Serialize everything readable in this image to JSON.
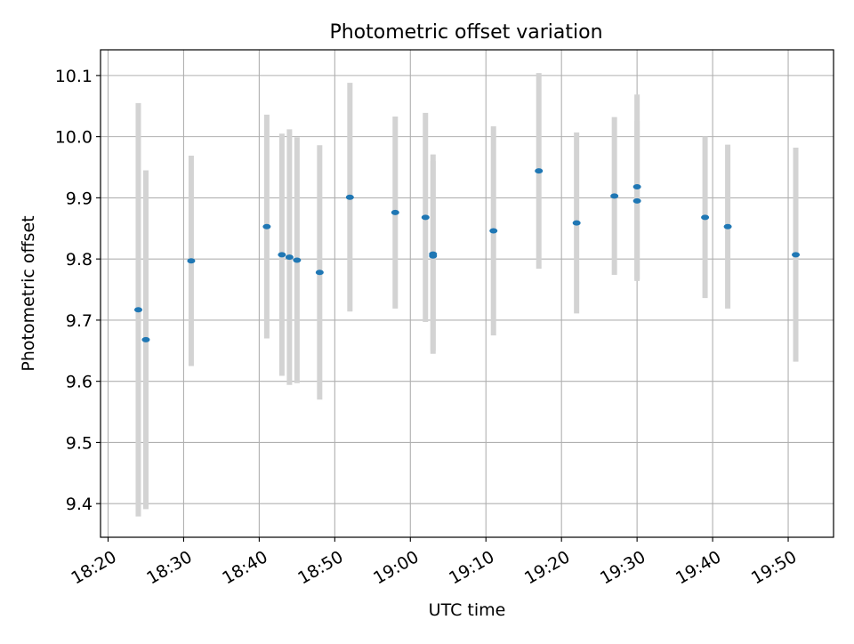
{
  "chart_data": {
    "type": "scatter",
    "title": "Photometric offset variation",
    "xlabel": "UTC time",
    "ylabel": "Photometric offset",
    "x_ticks": [
      "18:20",
      "18:30",
      "18:40",
      "18:50",
      "19:00",
      "19:10",
      "19:20",
      "19:30",
      "19:40",
      "19:50"
    ],
    "y_ticks": [
      "9.4",
      "9.5",
      "9.6",
      "9.7",
      "9.8",
      "9.9",
      "10.0",
      "10.1"
    ],
    "xlim": [
      "18:20",
      "19:56"
    ],
    "ylim": [
      9.345,
      10.142
    ],
    "grid": true,
    "colors": {
      "marker": "#1f77b4",
      "errorbar": "#d3d3d3",
      "grid": "#b0b0b0"
    },
    "points": [
      {
        "time": "18:24",
        "y": 9.717,
        "err": 0.338
      },
      {
        "time": "18:25",
        "y": 9.668,
        "err": 0.277
      },
      {
        "time": "18:31",
        "y": 9.797,
        "err": 0.172
      },
      {
        "time": "18:41",
        "y": 9.853,
        "err": 0.183
      },
      {
        "time": "18:43",
        "y": 9.807,
        "err": 0.198
      },
      {
        "time": "18:44",
        "y": 9.803,
        "err": 0.209
      },
      {
        "time": "18:45",
        "y": 9.798,
        "err": 0.201
      },
      {
        "time": "18:48",
        "y": 9.778,
        "err": 0.208
      },
      {
        "time": "18:52",
        "y": 9.901,
        "err": 0.187
      },
      {
        "time": "18:58",
        "y": 9.876,
        "err": 0.157
      },
      {
        "time": "19:02",
        "y": 9.868,
        "err": 0.171
      },
      {
        "time": "19:03",
        "y": 9.805,
        "err": 0.155
      },
      {
        "time": "19:03",
        "y": 9.808,
        "err": 0.163
      },
      {
        "time": "19:11",
        "y": 9.846,
        "err": 0.171
      },
      {
        "time": "19:17",
        "y": 9.944,
        "err": 0.16
      },
      {
        "time": "19:22",
        "y": 9.859,
        "err": 0.148
      },
      {
        "time": "19:27",
        "y": 9.903,
        "err": 0.129
      },
      {
        "time": "19:30",
        "y": 9.895,
        "err": 0.131
      },
      {
        "time": "19:30",
        "y": 9.918,
        "err": 0.151
      },
      {
        "time": "19:39",
        "y": 9.868,
        "err": 0.132
      },
      {
        "time": "19:42",
        "y": 9.853,
        "err": 0.134
      },
      {
        "time": "19:51",
        "y": 9.807,
        "err": 0.175
      }
    ]
  }
}
